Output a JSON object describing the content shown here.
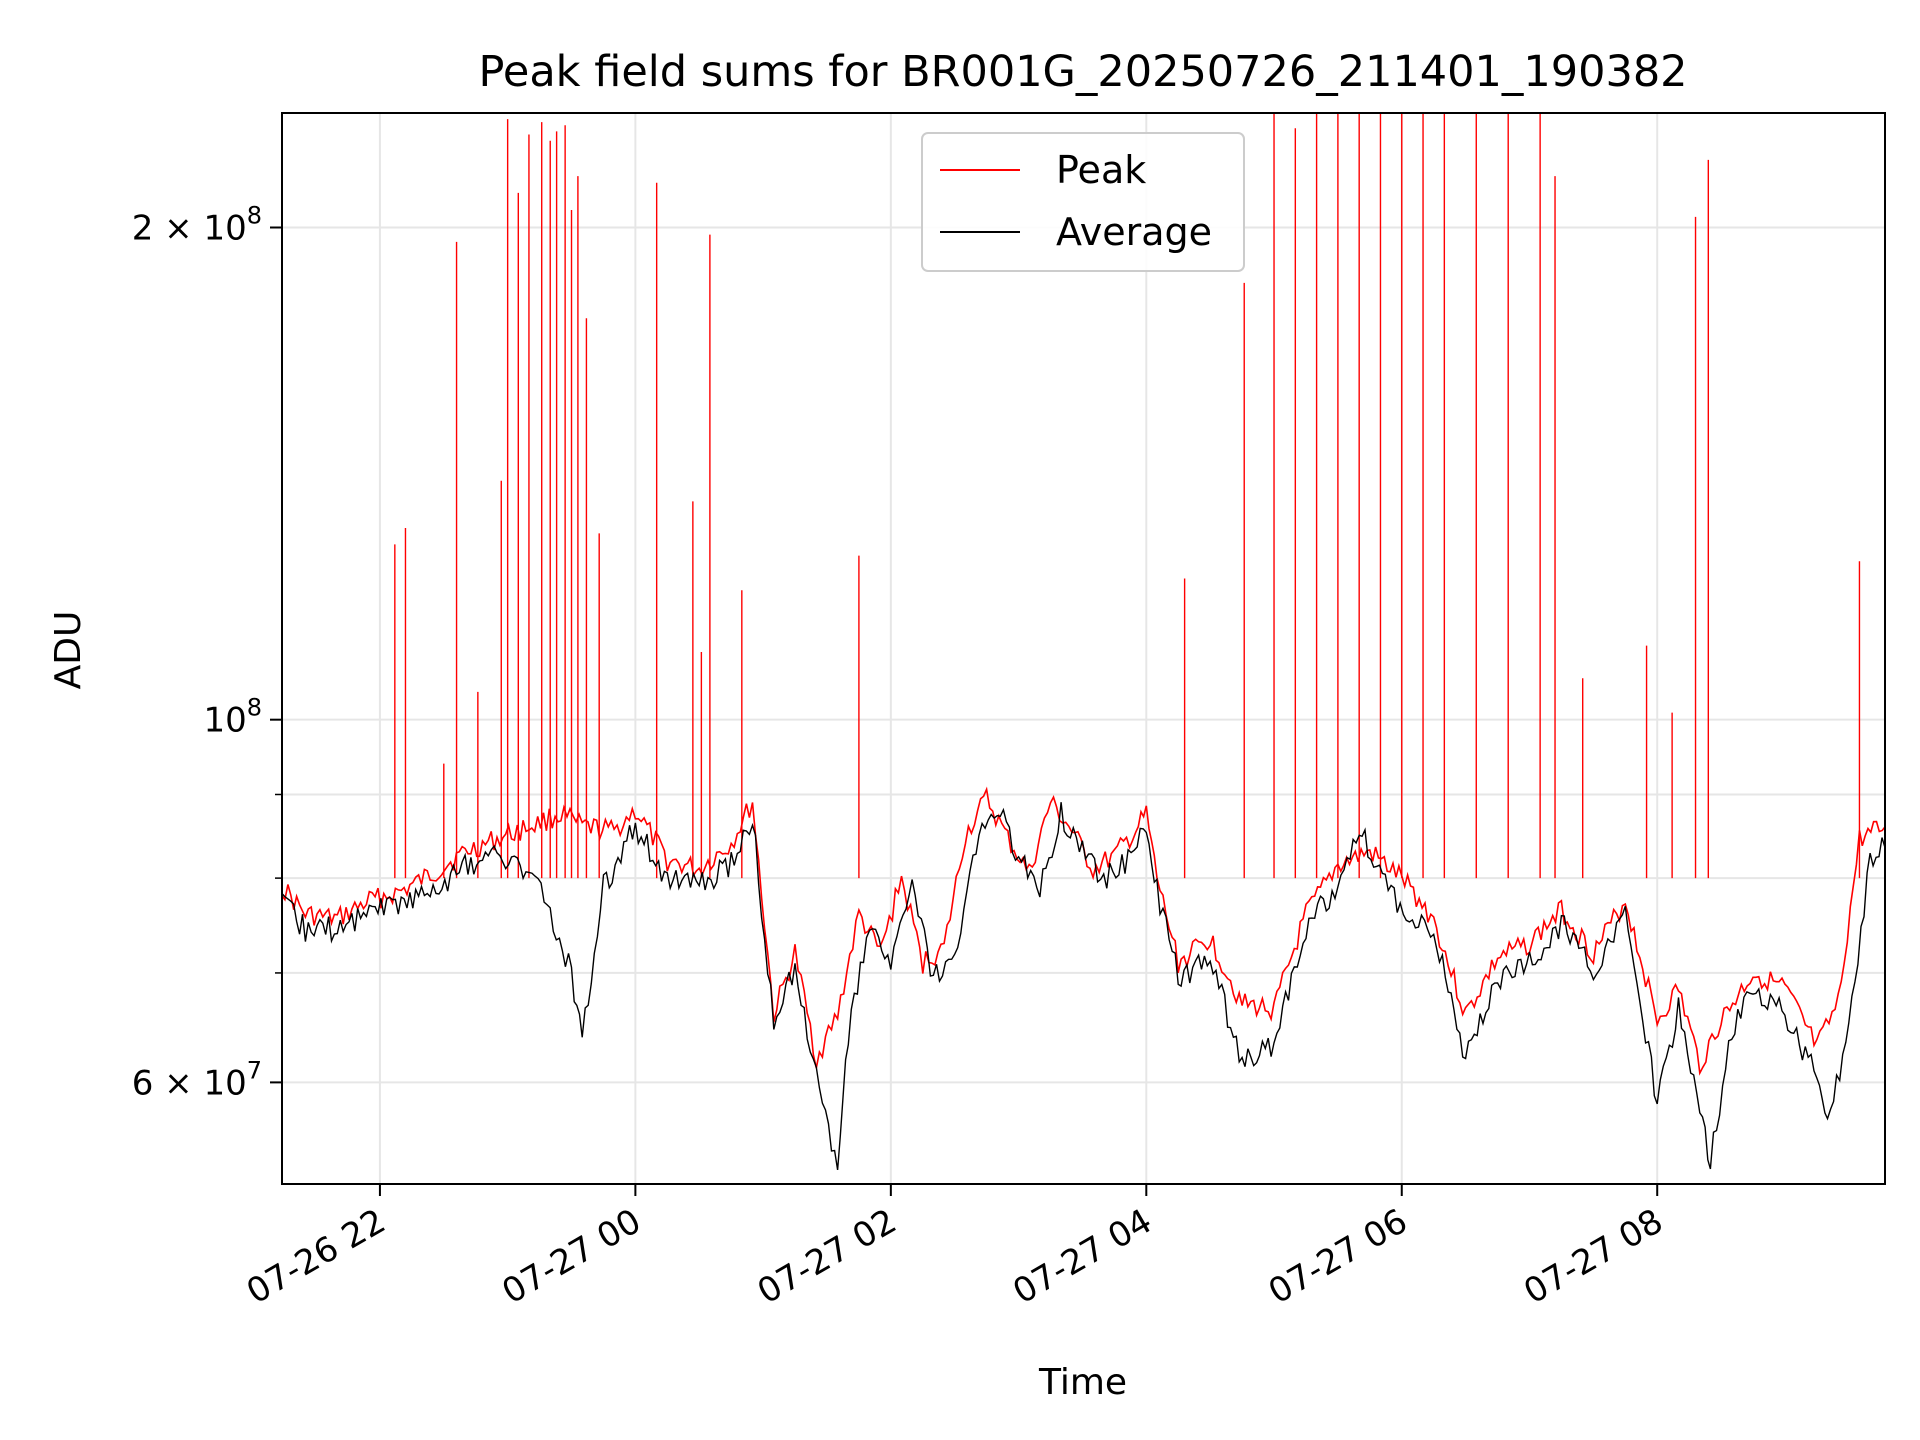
{
  "chart_data": {
    "type": "line",
    "title": "Peak field sums for BR001G_20250726_211401_190382",
    "xlabel": "Time",
    "ylabel": "ADU",
    "yscale": "log",
    "ylim": [
      52000000,
      235000000
    ],
    "xlim": [
      "2025-07-26 21:14",
      "2025-07-27 09:47"
    ],
    "grid": true,
    "legend_position": "top-center",
    "x_ticks": [
      {
        "t": "2025-07-26 22:00",
        "label": "07-26 22"
      },
      {
        "t": "2025-07-27 00:00",
        "label": "07-27 00"
      },
      {
        "t": "2025-07-27 02:00",
        "label": "07-27 02"
      },
      {
        "t": "2025-07-27 04:00",
        "label": "07-27 04"
      },
      {
        "t": "2025-07-27 06:00",
        "label": "07-27 06"
      },
      {
        "t": "2025-07-27 08:00",
        "label": "07-27 08"
      }
    ],
    "y_ticks": [
      {
        "v": 60000000,
        "base": "6 × 10",
        "exp": "7"
      },
      {
        "v": 100000000,
        "base": "10",
        "exp": "8"
      },
      {
        "v": 200000000,
        "base": "2 × 10",
        "exp": "8"
      }
    ],
    "y_minor_ticks": [
      70000000,
      80000000,
      90000000
    ],
    "series": [
      {
        "name": "Peak",
        "color": "#ff0000",
        "points": [
          [
            "2025-07-26 21:14",
            79000000
          ],
          [
            "2025-07-26 21:25",
            76000000
          ],
          [
            "2025-07-26 21:40",
            75500000
          ],
          [
            "2025-07-26 21:55",
            77500000
          ],
          [
            "2025-07-26 22:10",
            78500000
          ],
          [
            "2025-07-26 22:25",
            80500000
          ],
          [
            "2025-07-26 22:40",
            83000000
          ],
          [
            "2025-07-26 22:55",
            84500000
          ],
          [
            "2025-07-26 23:10",
            86000000
          ],
          [
            "2025-07-26 23:25",
            87500000
          ],
          [
            "2025-07-26 23:35",
            86000000
          ],
          [
            "2025-07-26 23:50",
            85500000
          ],
          [
            "2025-07-27 00:00",
            88000000
          ],
          [
            "2025-07-27 00:15",
            82000000
          ],
          [
            "2025-07-27 00:30",
            81000000
          ],
          [
            "2025-07-27 00:45",
            84000000
          ],
          [
            "2025-07-27 00:55",
            89000000
          ],
          [
            "2025-07-27 01:05",
            66000000
          ],
          [
            "2025-07-27 01:15",
            72000000
          ],
          [
            "2025-07-27 01:25",
            62000000
          ],
          [
            "2025-07-27 01:35",
            66000000
          ],
          [
            "2025-07-27 01:45",
            76000000
          ],
          [
            "2025-07-27 01:55",
            72000000
          ],
          [
            "2025-07-27 02:05",
            80000000
          ],
          [
            "2025-07-27 02:15",
            71000000
          ],
          [
            "2025-07-27 02:25",
            72500000
          ],
          [
            "2025-07-27 02:35",
            85000000
          ],
          [
            "2025-07-27 02:45",
            89500000
          ],
          [
            "2025-07-27 02:55",
            84500000
          ],
          [
            "2025-07-27 03:05",
            80500000
          ],
          [
            "2025-07-27 03:15",
            89000000
          ],
          [
            "2025-07-27 03:25",
            85500000
          ],
          [
            "2025-07-27 03:35",
            81000000
          ],
          [
            "2025-07-27 03:45",
            82500000
          ],
          [
            "2025-07-27 03:55",
            85500000
          ],
          [
            "2025-07-27 04:00",
            87500000
          ],
          [
            "2025-07-27 04:05",
            80000000
          ],
          [
            "2025-07-27 04:15",
            71000000
          ],
          [
            "2025-07-27 04:30",
            73500000
          ],
          [
            "2025-07-27 04:45",
            67000000
          ],
          [
            "2025-07-27 05:00",
            66500000
          ],
          [
            "2025-07-27 05:15",
            76000000
          ],
          [
            "2025-07-27 05:30",
            81500000
          ],
          [
            "2025-07-27 05:45",
            83000000
          ],
          [
            "2025-07-27 06:00",
            80000000
          ],
          [
            "2025-07-27 06:15",
            75500000
          ],
          [
            "2025-07-27 06:30",
            66000000
          ],
          [
            "2025-07-27 06:45",
            71500000
          ],
          [
            "2025-07-27 07:00",
            73000000
          ],
          [
            "2025-07-27 07:15",
            76500000
          ],
          [
            "2025-07-27 07:30",
            72000000
          ],
          [
            "2025-07-27 07:45",
            77500000
          ],
          [
            "2025-07-27 08:00",
            65500000
          ],
          [
            "2025-07-27 08:10",
            68500000
          ],
          [
            "2025-07-27 08:20",
            61500000
          ],
          [
            "2025-07-27 08:30",
            65500000
          ],
          [
            "2025-07-27 08:45",
            70000000
          ],
          [
            "2025-07-27 09:00",
            68500000
          ],
          [
            "2025-07-27 09:15",
            63000000
          ],
          [
            "2025-07-27 09:25",
            67000000
          ],
          [
            "2025-07-27 09:35",
            84500000
          ],
          [
            "2025-07-27 09:47",
            86000000
          ]
        ],
        "spikes": [
          [
            "2025-07-26 22:07",
            128000000
          ],
          [
            "2025-07-26 22:12",
            131000000
          ],
          [
            "2025-07-26 22:30",
            94000000
          ],
          [
            "2025-07-26 22:36",
            196000000
          ],
          [
            "2025-07-26 22:46",
            104000000
          ],
          [
            "2025-07-26 22:57",
            140000000
          ],
          [
            "2025-07-26 23:00",
            233000000
          ],
          [
            "2025-07-26 23:05",
            210000000
          ],
          [
            "2025-07-26 23:10",
            228000000
          ],
          [
            "2025-07-26 23:16",
            232000000
          ],
          [
            "2025-07-26 23:20",
            226000000
          ],
          [
            "2025-07-26 23:23",
            229000000
          ],
          [
            "2025-07-26 23:27",
            231000000
          ],
          [
            "2025-07-26 23:30",
            205000000
          ],
          [
            "2025-07-26 23:33",
            215000000
          ],
          [
            "2025-07-26 23:37",
            176000000
          ],
          [
            "2025-07-26 23:43",
            130000000
          ],
          [
            "2025-07-27 00:10",
            213000000
          ],
          [
            "2025-07-27 00:27",
            136000000
          ],
          [
            "2025-07-27 00:31",
            110000000
          ],
          [
            "2025-07-27 00:35",
            198000000
          ],
          [
            "2025-07-27 00:50",
            120000000
          ],
          [
            "2025-07-27 01:45",
            126000000
          ],
          [
            "2025-07-27 04:18",
            122000000
          ],
          [
            "2025-07-27 04:46",
            185000000
          ],
          [
            "2025-07-27 05:00",
            235000000
          ],
          [
            "2025-07-27 05:10",
            230000000
          ],
          [
            "2025-07-27 05:20",
            235000000
          ],
          [
            "2025-07-27 05:30",
            235000000
          ],
          [
            "2025-07-27 05:40",
            235000000
          ],
          [
            "2025-07-27 05:50",
            235000000
          ],
          [
            "2025-07-27 06:00",
            235000000
          ],
          [
            "2025-07-27 06:10",
            235000000
          ],
          [
            "2025-07-27 06:20",
            235000000
          ],
          [
            "2025-07-27 06:35",
            235000000
          ],
          [
            "2025-07-27 06:50",
            235000000
          ],
          [
            "2025-07-27 07:05",
            235000000
          ],
          [
            "2025-07-27 07:12",
            215000000
          ],
          [
            "2025-07-27 07:25",
            106000000
          ],
          [
            "2025-07-27 07:55",
            111000000
          ],
          [
            "2025-07-27 08:07",
            101000000
          ],
          [
            "2025-07-27 08:18",
            203000000
          ],
          [
            "2025-07-27 08:24",
            220000000
          ],
          [
            "2025-07-27 09:35",
            125000000
          ]
        ]
      },
      {
        "name": "Average",
        "color": "#000000",
        "points": [
          [
            "2025-07-26 21:14",
            77000000
          ],
          [
            "2025-07-26 21:25",
            74500000
          ],
          [
            "2025-07-26 21:40",
            74500000
          ],
          [
            "2025-07-26 21:55",
            76500000
          ],
          [
            "2025-07-26 22:10",
            77500000
          ],
          [
            "2025-07-26 22:25",
            78500000
          ],
          [
            "2025-07-26 22:40",
            81500000
          ],
          [
            "2025-07-26 22:55",
            82500000
          ],
          [
            "2025-07-26 23:10",
            81000000
          ],
          [
            "2025-07-26 23:20",
            76000000
          ],
          [
            "2025-07-26 23:30",
            70000000
          ],
          [
            "2025-07-26 23:35",
            64000000
          ],
          [
            "2025-07-26 23:45",
            79000000
          ],
          [
            "2025-07-27 00:00",
            86000000
          ],
          [
            "2025-07-27 00:15",
            80000000
          ],
          [
            "2025-07-27 00:30",
            79000000
          ],
          [
            "2025-07-27 00:45",
            81500000
          ],
          [
            "2025-07-27 00:55",
            87000000
          ],
          [
            "2025-07-27 01:05",
            65000000
          ],
          [
            "2025-07-27 01:15",
            70500000
          ],
          [
            "2025-07-27 01:25",
            61000000
          ],
          [
            "2025-07-27 01:35",
            52500000
          ],
          [
            "2025-07-27 01:40",
            64000000
          ],
          [
            "2025-07-27 01:50",
            75000000
          ],
          [
            "2025-07-27 02:00",
            71000000
          ],
          [
            "2025-07-27 02:10",
            78500000
          ],
          [
            "2025-07-27 02:20",
            69500000
          ],
          [
            "2025-07-27 02:30",
            71000000
          ],
          [
            "2025-07-27 02:40",
            83500000
          ],
          [
            "2025-07-27 02:50",
            88500000
          ],
          [
            "2025-07-27 03:00",
            82000000
          ],
          [
            "2025-07-27 03:10",
            79000000
          ],
          [
            "2025-07-27 03:20",
            87500000
          ],
          [
            "2025-07-27 03:30",
            83500000
          ],
          [
            "2025-07-27 03:40",
            80000000
          ],
          [
            "2025-07-27 03:50",
            81500000
          ],
          [
            "2025-07-27 04:00",
            86000000
          ],
          [
            "2025-07-27 04:05",
            78500000
          ],
          [
            "2025-07-27 04:15",
            69500000
          ],
          [
            "2025-07-27 04:30",
            71500000
          ],
          [
            "2025-07-27 04:45",
            61500000
          ],
          [
            "2025-07-27 05:00",
            63500000
          ],
          [
            "2025-07-27 05:15",
            74500000
          ],
          [
            "2025-07-27 05:30",
            79500000
          ],
          [
            "2025-07-27 05:40",
            86000000
          ],
          [
            "2025-07-27 05:55",
            78000000
          ],
          [
            "2025-07-27 06:15",
            74000000
          ],
          [
            "2025-07-27 06:30",
            62000000
          ],
          [
            "2025-07-27 06:45",
            69500000
          ],
          [
            "2025-07-27 07:00",
            71000000
          ],
          [
            "2025-07-27 07:15",
            75000000
          ],
          [
            "2025-07-27 07:30",
            70500000
          ],
          [
            "2025-07-27 07:45",
            76000000
          ],
          [
            "2025-07-27 08:00",
            58500000
          ],
          [
            "2025-07-27 08:10",
            66500000
          ],
          [
            "2025-07-27 08:20",
            58000000
          ],
          [
            "2025-07-27 08:25",
            53500000
          ],
          [
            "2025-07-27 08:35",
            64500000
          ],
          [
            "2025-07-27 08:45",
            68000000
          ],
          [
            "2025-07-27 09:00",
            66000000
          ],
          [
            "2025-07-27 09:15",
            60500000
          ],
          [
            "2025-07-27 09:20",
            56500000
          ],
          [
            "2025-07-27 09:30",
            64500000
          ],
          [
            "2025-07-27 09:40",
            82500000
          ],
          [
            "2025-07-27 09:47",
            83500000
          ]
        ]
      }
    ]
  }
}
